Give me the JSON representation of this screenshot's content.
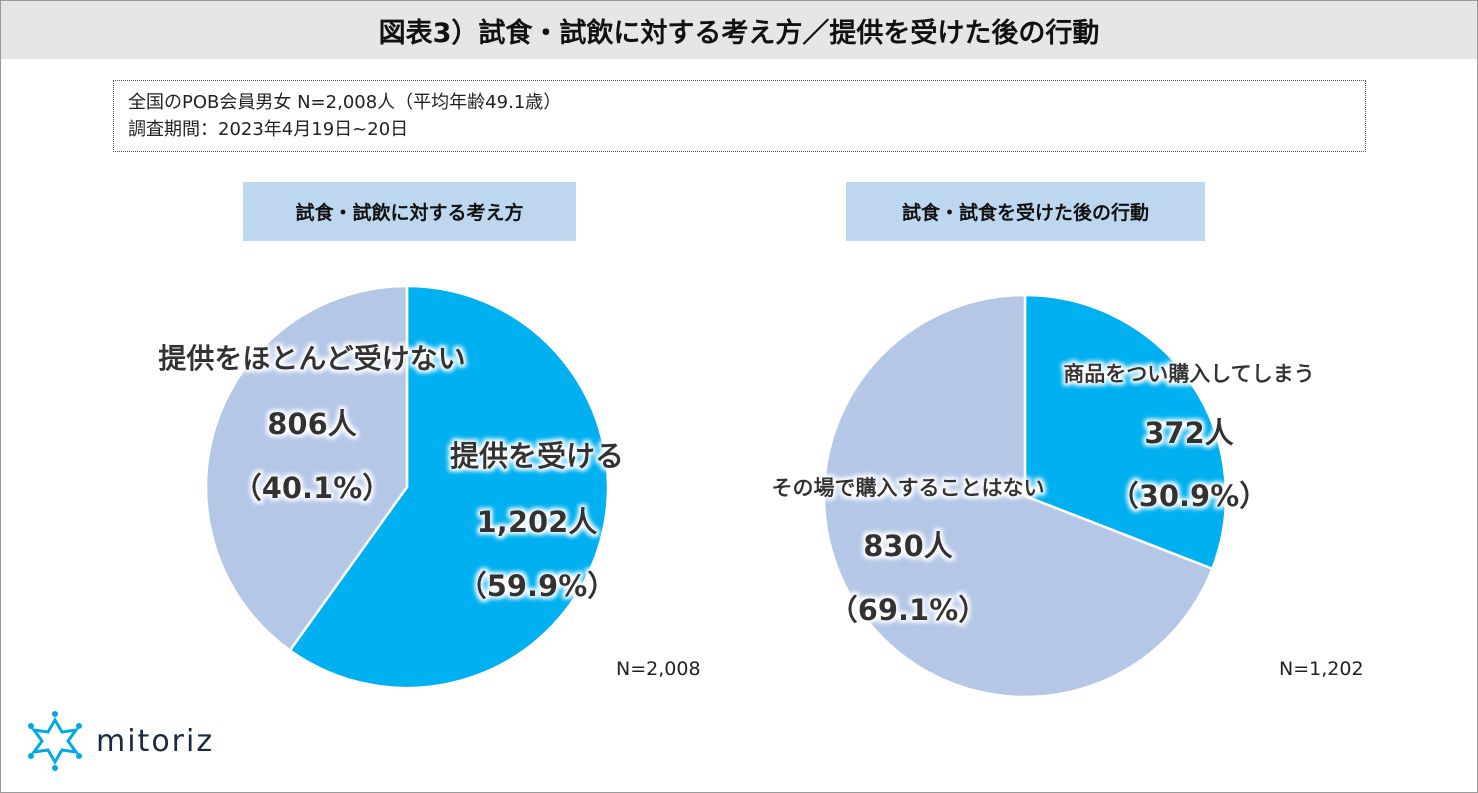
{
  "title": "図表3）試食・試飲に対する考え方／提供を受けた後の行動",
  "survey": {
    "line1": "全国のPOB会員男女 N=2,008人（平均年齢49.1歳）",
    "line2": "調査期間：2023年4月19日~20日"
  },
  "brand": "mitoriz",
  "colors": {
    "bright": "#00b0f0",
    "pale": "#b4c7e7",
    "label_bg": "#bdd7ee"
  },
  "chart_data": [
    {
      "type": "pie",
      "title": "試食・試飲に対する考え方",
      "n_note": "N=2,008",
      "slices": [
        {
          "label": "提供を受ける",
          "count_text": "1,202人",
          "pct_text": "（59.9%）",
          "value": 59.9,
          "color": "#00b0f0"
        },
        {
          "label": "提供をほとんど受けない",
          "count_text": "806人",
          "pct_text": "（40.1%）",
          "value": 40.1,
          "color": "#b4c7e7"
        }
      ]
    },
    {
      "type": "pie",
      "title": "試食・試食を受けた後の行動",
      "n_note": "N=1,202",
      "slices": [
        {
          "label": "商品をつい購入してしまう",
          "count_text": "372人",
          "pct_text": "（30.9%）",
          "value": 30.9,
          "color": "#00b0f0"
        },
        {
          "label": "その場で購入することはない",
          "count_text": "830人",
          "pct_text": "（69.1%）",
          "value": 69.1,
          "color": "#b4c7e7"
        }
      ]
    }
  ]
}
